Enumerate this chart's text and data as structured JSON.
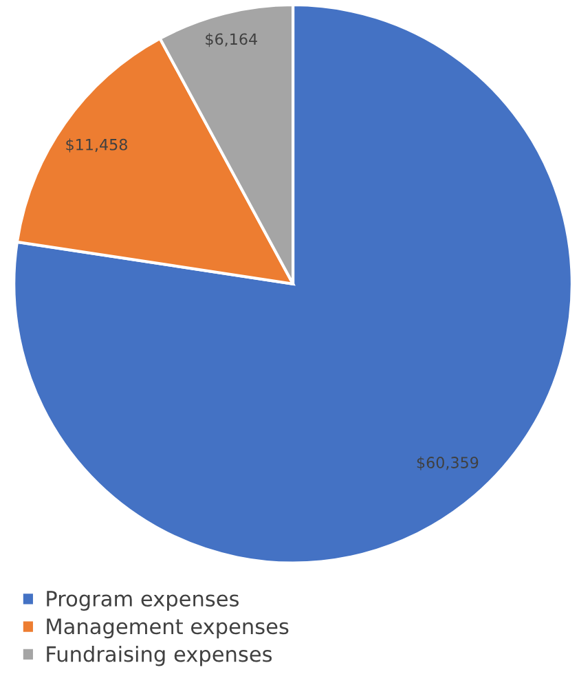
{
  "chart_data": {
    "type": "pie",
    "categories": [
      "Program expenses",
      "Management expenses",
      "Fundraising expenses"
    ],
    "values": [
      60359,
      11458,
      6164
    ],
    "colors": [
      "#4472c4",
      "#ed7d31",
      "#a5a5a5"
    ],
    "value_labels": [
      "$60,359",
      "$11,458",
      "$6,164"
    ],
    "legend": "bottom left"
  }
}
